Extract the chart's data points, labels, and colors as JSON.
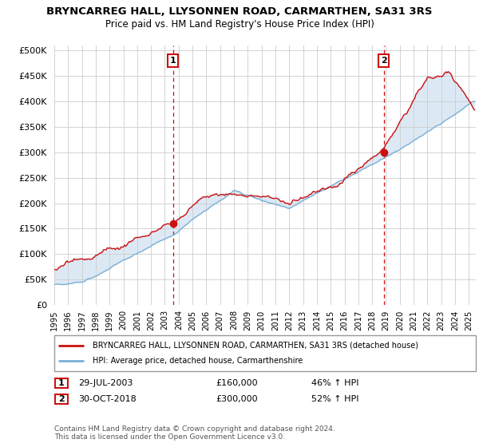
{
  "title": "BRYNCARREG HALL, LLYSONNEN ROAD, CARMARTHEN, SA31 3RS",
  "subtitle": "Price paid vs. HM Land Registry's House Price Index (HPI)",
  "ytick_values": [
    0,
    50000,
    100000,
    150000,
    200000,
    250000,
    300000,
    350000,
    400000,
    450000,
    500000
  ],
  "ylim": [
    0,
    510000
  ],
  "xlim_start": 1995.0,
  "xlim_end": 2025.5,
  "hpi_color": "#7bafd4",
  "price_color": "#cc1111",
  "fill_color": "#dce9f5",
  "vline_color": "#cc1111",
  "marker1_date": 2003.58,
  "marker1_price": 160000,
  "marker2_date": 2018.83,
  "marker2_price": 300000,
  "legend_line1": "BRYNCARREG HALL, LLYSONNEN ROAD, CARMARTHEN, SA31 3RS (detached house)",
  "legend_line2": "HPI: Average price, detached house, Carmarthenshire",
  "table_row1": [
    "1",
    "29-JUL-2003",
    "£160,000",
    "46% ↑ HPI"
  ],
  "table_row2": [
    "2",
    "30-OCT-2018",
    "£300,000",
    "52% ↑ HPI"
  ],
  "footnote": "Contains HM Land Registry data © Crown copyright and database right 2024.\nThis data is licensed under the Open Government Licence v3.0.",
  "background_color": "#ffffff",
  "grid_color": "#cccccc"
}
